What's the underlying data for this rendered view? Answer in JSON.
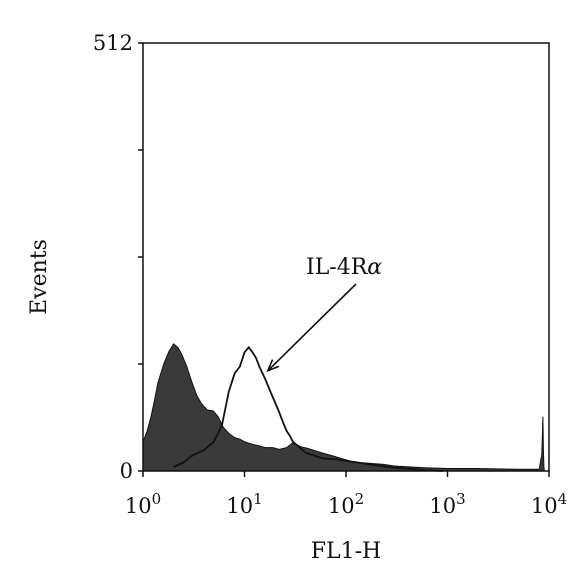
{
  "chart_data": {
    "type": "area",
    "xlabel": "FL1-H",
    "ylabel": "Events",
    "x_scale": "log",
    "xlim": [
      1,
      10000
    ],
    "ylim": [
      0,
      512
    ],
    "x_ticks": [
      {
        "base": "10",
        "exp": "0",
        "value": 1
      },
      {
        "base": "10",
        "exp": "1",
        "value": 10
      },
      {
        "base": "10",
        "exp": "2",
        "value": 100
      },
      {
        "base": "10",
        "exp": "3",
        "value": 1000
      },
      {
        "base": "10",
        "exp": "4",
        "value": 10000
      }
    ],
    "y_tick_labels": [
      {
        "text": "0",
        "value": 0
      },
      {
        "text": "512",
        "value": 512
      }
    ],
    "y_minor_ticks": [
      128,
      256,
      384
    ],
    "annotation": {
      "text_main": "IL-4R",
      "text_symbol": "α",
      "target_x": 17,
      "target_y": 120
    },
    "series": [
      {
        "style": "filled",
        "color": "#3a3a3a",
        "x": [
          1.0,
          1.1,
          1.2,
          1.3,
          1.4,
          1.6,
          1.8,
          2.0,
          2.2,
          2.4,
          2.7,
          3.0,
          3.4,
          3.8,
          4.3,
          4.9,
          5.5,
          6.2,
          7.0,
          8.0,
          9.0,
          10.0,
          12.0,
          14.0,
          16.0,
          19.0,
          22.0,
          26.0,
          30.0,
          36.0,
          42.0,
          50.0,
          60.0,
          75.0,
          90.0,
          110.0,
          140.0,
          180.0,
          230.0,
          300.0,
          400.0,
          600.0,
          1000.0,
          2000.0,
          5000.0,
          8000.0,
          8500.0,
          8700.0,
          8800.0,
          8900.0,
          9000.0
        ],
        "y": [
          35,
          48,
          65,
          85,
          105,
          128,
          143,
          152,
          148,
          140,
          125,
          108,
          90,
          80,
          73,
          72,
          65,
          52,
          45,
          40,
          38,
          35,
          32,
          30,
          28,
          28,
          26,
          28,
          34,
          29,
          27,
          24,
          21,
          18,
          15,
          12,
          10,
          9,
          8,
          6,
          5,
          4,
          3,
          3,
          2,
          2,
          20,
          65,
          25,
          5,
          0
        ]
      },
      {
        "style": "outline",
        "color": "#111111",
        "x": [
          2.0,
          2.5,
          3.0,
          4.0,
          5.0,
          6.0,
          7.0,
          8.0,
          9.0,
          10.0,
          11.0,
          12.0,
          13.0,
          14.0,
          16.0,
          18.0,
          20.0,
          22.0,
          24.0,
          26.0,
          28.0,
          30.0,
          35.0,
          40.0,
          50.0,
          60.0,
          80.0,
          100.0,
          130.0,
          170.0,
          220.0,
          300.0,
          400.0,
          600.0,
          900.0
        ],
        "y": [
          5,
          10,
          18,
          25,
          35,
          55,
          95,
          117,
          125,
          142,
          148,
          142,
          135,
          125,
          110,
          95,
          82,
          70,
          58,
          48,
          42,
          35,
          28,
          22,
          18,
          15,
          14,
          12,
          10,
          8,
          6,
          4,
          3,
          1,
          0
        ]
      }
    ]
  }
}
